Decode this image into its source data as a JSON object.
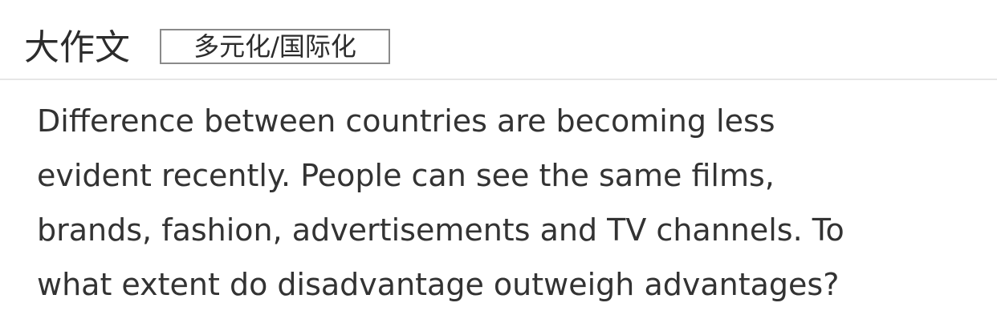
{
  "header": {
    "title": "大作文",
    "tag": "多元化/国际化"
  },
  "prompt": {
    "lines": [
      "Difference between countries are becoming less",
      "evident recently. People can see the same films,",
      "brands, fashion, advertisements and TV channels. To",
      "what extent do disadvantage outweigh advantages?"
    ]
  }
}
